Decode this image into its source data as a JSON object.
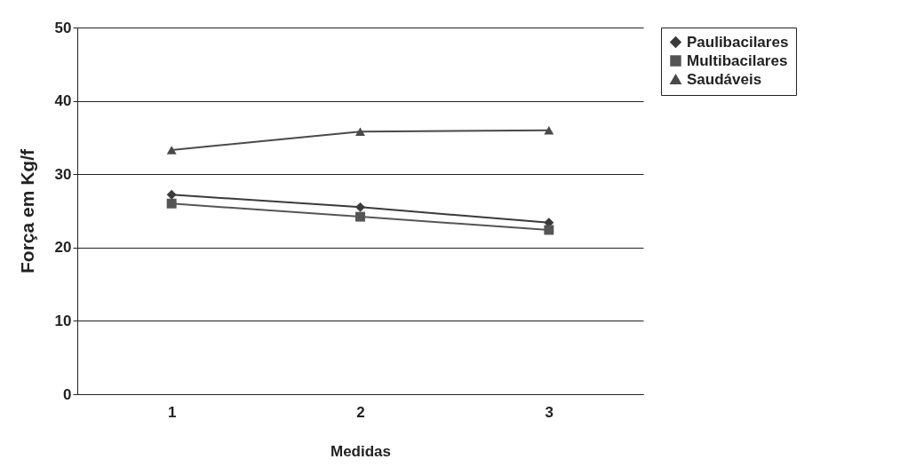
{
  "chart_data": {
    "type": "line",
    "xlabel": "Medidas",
    "ylabel": "Força em Kg/f",
    "categories": [
      "1",
      "2",
      "3"
    ],
    "series": [
      {
        "name": "Paulibacilares",
        "color": "#3a3a3a",
        "marker": "diamond",
        "values": [
          27.2,
          25.5,
          23.4
        ]
      },
      {
        "name": "Multibacilares",
        "color": "#555555",
        "marker": "square",
        "values": [
          26.0,
          24.2,
          22.4
        ]
      },
      {
        "name": "Saudáveis",
        "color": "#4a4a4a",
        "marker": "triangle",
        "values": [
          33.3,
          35.8,
          36.0
        ]
      }
    ],
    "ylim": [
      0,
      50
    ],
    "yticks": [
      0,
      10,
      20,
      30,
      40,
      50
    ],
    "grid": "y",
    "legend": "right",
    "line_style": "solid"
  }
}
